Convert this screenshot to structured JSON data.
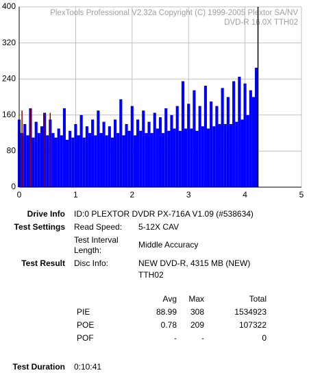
{
  "chart_data": {
    "type": "bar",
    "watermark": [
      "PlexTools Professional V2.32a Copyright (C) 1999-2005 Plextor SA/NV",
      "DVD-R   16.0X   TTH02"
    ],
    "xlim": [
      0,
      5
    ],
    "xticks": [
      0,
      1,
      2,
      3,
      4,
      5
    ],
    "ylim": [
      0,
      400
    ],
    "yticks": [
      0,
      80,
      160,
      240,
      320,
      400
    ],
    "grid": true,
    "marker_x": 4.23,
    "marker_color": "#000000",
    "series": [
      {
        "color": "#0000ff",
        "x": [
          0,
          0.05,
          0.1,
          0.15,
          0.2,
          0.25,
          0.3,
          0.35,
          0.4,
          0.45,
          0.5,
          0.55,
          0.6,
          0.65,
          0.7,
          0.75,
          0.8,
          0.85,
          0.9,
          0.95,
          1.0,
          1.05,
          1.1,
          1.15,
          1.2,
          1.25,
          1.3,
          1.35,
          1.4,
          1.45,
          1.5,
          1.55,
          1.6,
          1.65,
          1.7,
          1.75,
          1.8,
          1.85,
          1.9,
          1.95,
          2.0,
          2.05,
          2.1,
          2.15,
          2.2,
          2.25,
          2.3,
          2.35,
          2.4,
          2.45,
          2.5,
          2.55,
          2.6,
          2.65,
          2.7,
          2.75,
          2.8,
          2.85,
          2.9,
          2.95,
          3.0,
          3.05,
          3.1,
          3.15,
          3.2,
          3.25,
          3.3,
          3.35,
          3.4,
          3.45,
          3.5,
          3.55,
          3.6,
          3.65,
          3.7,
          3.75,
          3.8,
          3.85,
          3.9,
          3.95,
          4.0,
          4.05,
          4.1,
          4.15,
          4.2
        ],
        "values": [
          150,
          120,
          140,
          115,
          175,
          110,
          145,
          120,
          135,
          165,
          115,
          150,
          120,
          110,
          130,
          115,
          175,
          105,
          125,
          110,
          140,
          115,
          160,
          110,
          135,
          120,
          150,
          115,
          170,
          120,
          145,
          115,
          135,
          110,
          150,
          120,
          195,
          115,
          140,
          125,
          180,
          115,
          150,
          125,
          170,
          120,
          145,
          120,
          165,
          130,
          155,
          120,
          175,
          125,
          160,
          130,
          180,
          125,
          235,
          130,
          185,
          130,
          215,
          125,
          180,
          135,
          225,
          130,
          190,
          135,
          180,
          140,
          220,
          140,
          200,
          140,
          235,
          145,
          245,
          150,
          230,
          160,
          215,
          200,
          265
        ]
      },
      {
        "color": "#8b0000",
        "x": [
          0.05,
          0.2,
          0.45,
          0.55
        ],
        "values": [
          170,
          175,
          165,
          165
        ]
      }
    ]
  },
  "info": {
    "drive_info": {
      "label": "Drive Info",
      "value": "ID:0 PLEXTOR DVDR PX-716A V1.09 (#538634)"
    },
    "test_settings": {
      "label": "Test Settings",
      "read_speed_label": "Read Speed:",
      "read_speed": "5-12X CAV",
      "interval_label": [
        "Test Interval",
        "Length:"
      ],
      "interval": "Middle Accuracy"
    },
    "test_result": {
      "label": "Test Result",
      "disc_label": "Disc Info:",
      "disc_info": [
        "NEW DVD-R, 4315 MB (NEW)",
        "TTH02"
      ]
    },
    "results": {
      "columns": [
        "Avg",
        "Max",
        "Total"
      ],
      "rows": [
        [
          "PIE",
          88.99,
          308,
          1534923
        ],
        [
          "POE",
          0.78,
          209,
          107322
        ],
        [
          "POF",
          "-",
          "-",
          0
        ]
      ]
    },
    "duration": {
      "label": "Test Duration",
      "value": "0:10:41"
    }
  }
}
